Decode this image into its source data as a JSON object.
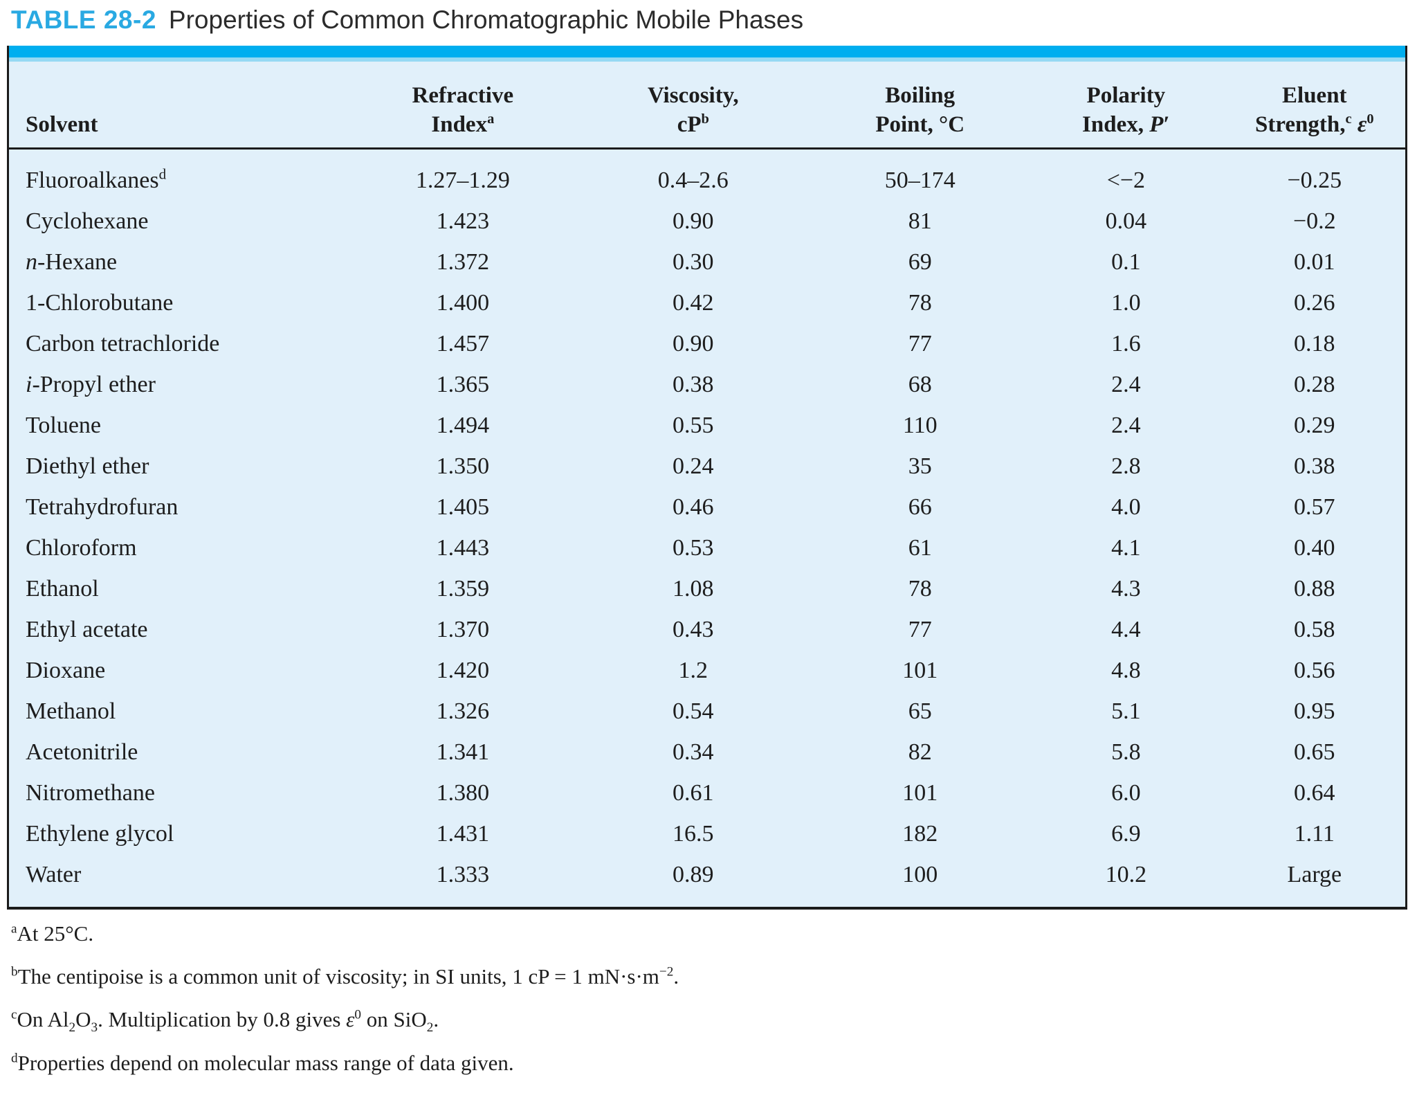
{
  "caption": {
    "tag": "TABLE 28-2",
    "title": "Properties of Common Chromatographic Mobile Phases"
  },
  "colors": {
    "caption_tag_blue": "#29a9e2",
    "top_bar_cyan": "#00aeef",
    "table_background": "#e1f0fa",
    "rule_black": "#1b1b1b"
  },
  "table": {
    "columns": [
      {
        "name": "solvent",
        "header_html": "Solvent"
      },
      {
        "name": "refractive-index",
        "header_html": "Refractive<br>Index<sup>a</sup>"
      },
      {
        "name": "viscosity",
        "header_html": "Viscosity,<br>cP<sup>b</sup>"
      },
      {
        "name": "boiling-point",
        "header_html": "Boiling<br>Point, °C"
      },
      {
        "name": "polarity-index",
        "header_html": "Polarity<br>Index, <i>P</i>′"
      },
      {
        "name": "eluent-strength",
        "header_html": "Eluent<br>Strength,<sup>c</sup> <i>ε</i><sup>0</sup>"
      }
    ],
    "rows": [
      {
        "cells": [
          "Fluoroalkanes<sup>d</sup>",
          "1.27–1.29",
          "0.4–2.6",
          "50–174",
          "&lt;−2",
          "−0.25"
        ]
      },
      {
        "cells": [
          "Cyclohexane",
          "1.423",
          "0.90",
          "81",
          "0.04",
          "−0.2"
        ]
      },
      {
        "cells": [
          "<i>n</i>-Hexane",
          "1.372",
          "0.30",
          "69",
          "0.1",
          "0.01"
        ]
      },
      {
        "cells": [
          "1-Chlorobutane",
          "1.400",
          "0.42",
          "78",
          "1.0",
          "0.26"
        ]
      },
      {
        "cells": [
          "Carbon tetrachloride",
          "1.457",
          "0.90",
          "77",
          "1.6",
          "0.18"
        ]
      },
      {
        "cells": [
          "<i>i</i>-Propyl ether",
          "1.365",
          "0.38",
          "68",
          "2.4",
          "0.28"
        ]
      },
      {
        "cells": [
          "Toluene",
          "1.494",
          "0.55",
          "110",
          "2.4",
          "0.29"
        ]
      },
      {
        "cells": [
          "Diethyl ether",
          "1.350",
          "0.24",
          "35",
          "2.8",
          "0.38"
        ]
      },
      {
        "cells": [
          "Tetrahydrofuran",
          "1.405",
          "0.46",
          "66",
          "4.0",
          "0.57"
        ]
      },
      {
        "cells": [
          "Chloroform",
          "1.443",
          "0.53",
          "61",
          "4.1",
          "0.40"
        ]
      },
      {
        "cells": [
          "Ethanol",
          "1.359",
          "1.08",
          "78",
          "4.3",
          "0.88"
        ]
      },
      {
        "cells": [
          "Ethyl acetate",
          "1.370",
          "0.43",
          "77",
          "4.4",
          "0.58"
        ]
      },
      {
        "cells": [
          "Dioxane",
          "1.420",
          "1.2",
          "101",
          "4.8",
          "0.56"
        ]
      },
      {
        "cells": [
          "Methanol",
          "1.326",
          "0.54",
          "65",
          "5.1",
          "0.95"
        ]
      },
      {
        "cells": [
          "Acetonitrile",
          "1.341",
          "0.34",
          "82",
          "5.8",
          "0.65"
        ]
      },
      {
        "cells": [
          "Nitromethane",
          "1.380",
          "0.61",
          "101",
          "6.0",
          "0.64"
        ]
      },
      {
        "cells": [
          "Ethylene glycol",
          "1.431",
          "16.5",
          "182",
          "6.9",
          "1.11"
        ]
      },
      {
        "cells": [
          "Water",
          "1.333",
          "0.89",
          "100",
          "10.2",
          "Large"
        ]
      }
    ]
  },
  "footnotes": [
    {
      "marker": "a",
      "text_html": "At 25°C."
    },
    {
      "marker": "b",
      "text_html": "The centipoise is a common unit of viscosity; in SI units, 1 cP = 1 mN·s·m<sup>−2</sup>."
    },
    {
      "marker": "c",
      "text_html": "On Al<sub>2</sub>O<sub>3</sub>. Multiplication by 0.8 gives <i>ε</i><sup>0</sup> on SiO<sub>2</sub>."
    },
    {
      "marker": "d",
      "text_html": "Properties depend on molecular mass range of data given."
    }
  ]
}
